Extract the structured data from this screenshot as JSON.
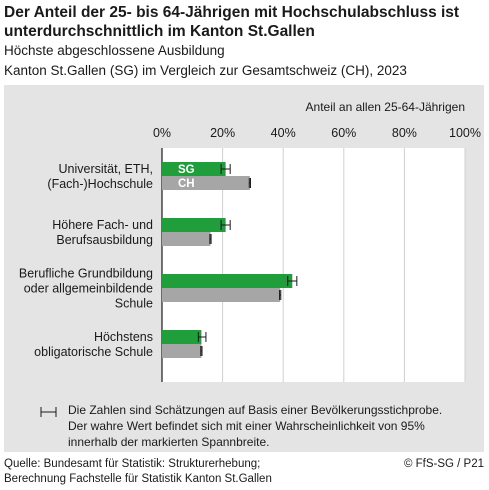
{
  "header": {
    "title": "Der Anteil der 25- bis 64-Jährigen mit Hochschulabschluss ist unterdurchschnittlich im Kanton St.Gallen",
    "subtitle1": "Höchste abgeschlossene Ausbildung",
    "subtitle2": "Kanton St.Gallen (SG) im Vergleich zur Gesamtschweiz (CH), 2023"
  },
  "chart_data": {
    "type": "bar",
    "orientation": "horizontal",
    "axis_label": "Anteil an allen 25-64-Jährigen",
    "xlim": [
      0,
      100
    ],
    "ticks": [
      "0%",
      "20%",
      "40%",
      "60%",
      "80%",
      "100%"
    ],
    "grid": true,
    "categories": [
      [
        "Universität, ETH,",
        "(Fach-)Hochschule"
      ],
      [
        "Höhere Fach- und",
        "Berufsausbildung"
      ],
      [
        "Berufliche Grundbildung",
        "oder allgemeinbildende",
        "Schule"
      ],
      [
        "Höchstens",
        "obligatorische Schule"
      ]
    ],
    "series": [
      {
        "name": "SG",
        "color": "#1f9e3b",
        "values": [
          21,
          21,
          43,
          13
        ],
        "ci": [
          [
            19.5,
            22.5
          ],
          [
            19.5,
            22.5
          ],
          [
            41.5,
            44.5
          ],
          [
            12,
            14.5
          ]
        ]
      },
      {
        "name": "CH",
        "color": "#a6a6a6",
        "values": [
          29,
          16,
          39,
          13
        ],
        "ci": [
          [
            28.8,
            29.2
          ],
          [
            15.8,
            16.2
          ],
          [
            38.8,
            39.2
          ],
          [
            12.8,
            13.2
          ]
        ]
      }
    ],
    "legend_note": "Die Zahlen sind Schätzungen auf Basis einer Bevölkerungsstichprobe. Der wahre Wert befindet sich mit einer Wahrscheinlichkeit von 95% innerhalb der markierten Spannbreite."
  },
  "footer": {
    "source1": "Quelle: Bundesamt für Statistik: Strukturerhebung;",
    "source2": "Berechnung Fachstelle für Statistik Kanton St.Gallen",
    "copyright": "© FfS-SG / P21"
  }
}
